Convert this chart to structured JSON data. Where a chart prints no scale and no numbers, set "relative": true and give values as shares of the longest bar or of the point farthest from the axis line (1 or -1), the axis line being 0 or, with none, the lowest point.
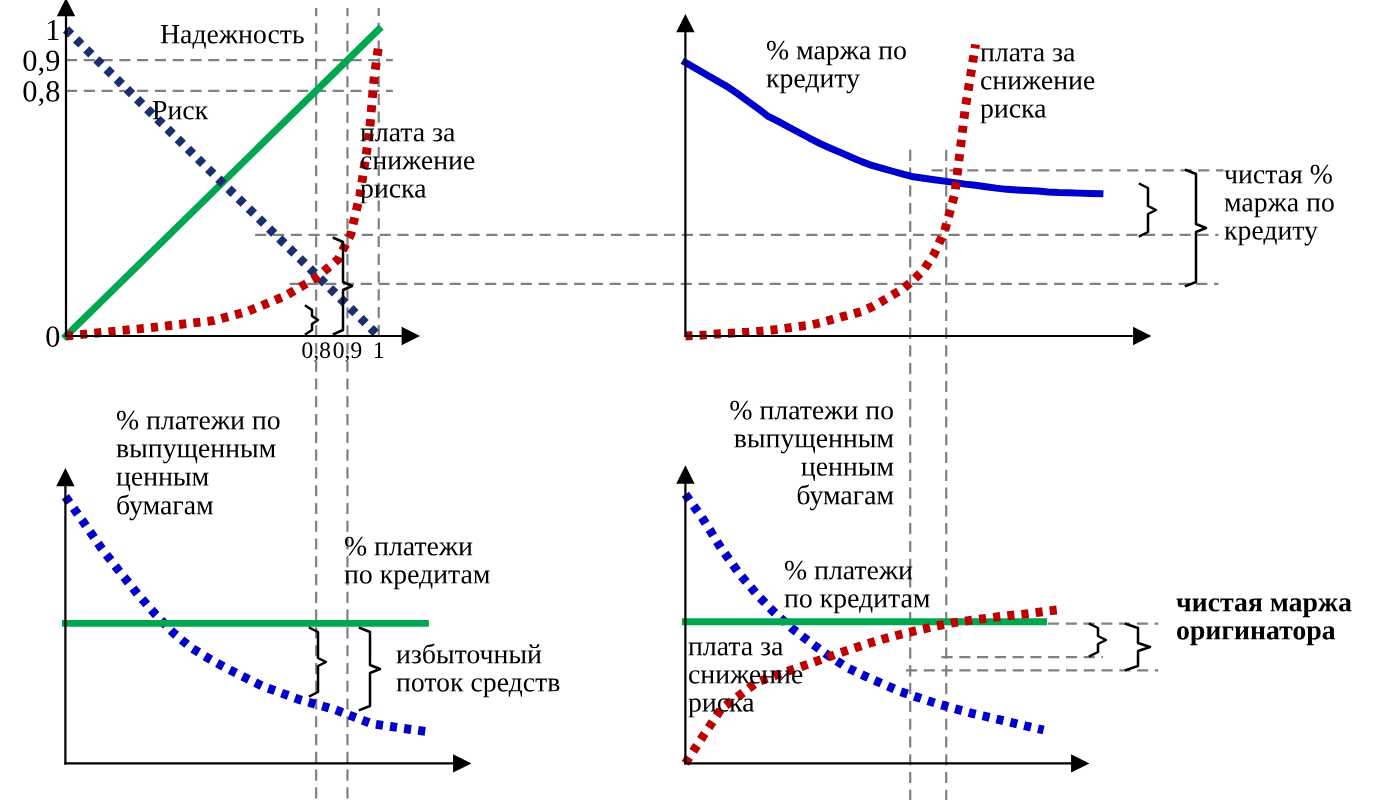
{
  "chart_data": [
    {
      "type": "line",
      "xlim": [
        0,
        1.1
      ],
      "ylim": [
        0,
        1.07
      ],
      "xticks": [
        {
          "value": 0.8,
          "label": "0,8"
        },
        {
          "value": 0.9,
          "label": "0,9"
        },
        1
      ],
      "yticks": [
        {
          "value": 0,
          "label": "0"
        },
        {
          "value": 0.8,
          "label": "0,8"
        },
        {
          "value": 0.9,
          "label": "0,9"
        },
        1
      ],
      "series": [
        {
          "name": "Надежность",
          "color": "#00a650",
          "line_style": "solid",
          "x": [
            0,
            1
          ],
          "values": [
            0,
            1
          ]
        },
        {
          "name": "Риск",
          "color": "#1a2f6e",
          "line_style": "dotted",
          "x": [
            0,
            1
          ],
          "values": [
            1,
            0
          ]
        },
        {
          "name": "плата за\nснижение\nриска",
          "color": "#c00000",
          "line_style": "dotted",
          "x": [
            0,
            0.26,
            0.47,
            0.58,
            0.7,
            0.8,
            0.87,
            0.91,
            0.94,
            0.97,
            0.985,
            1.0
          ],
          "values": [
            0,
            0.026,
            0.05,
            0.08,
            0.13,
            0.19,
            0.25,
            0.33,
            0.46,
            0.66,
            0.84,
            0.95
          ]
        }
      ],
      "ref_lines": [
        {
          "axis": "x",
          "value": 0.8,
          "line_style": "dashed",
          "color": "#808080"
        },
        {
          "axis": "x",
          "value": 0.9,
          "line_style": "dashed",
          "color": "#808080"
        },
        {
          "axis": "x",
          "value": 1,
          "line_style": "dashed",
          "color": "#808080"
        },
        {
          "axis": "y",
          "value": 0.9,
          "line_style": "dashed",
          "color": "#808080"
        },
        {
          "axis": "y",
          "value": 0.8,
          "line_style": "dashed",
          "color": "#808080"
        },
        {
          "axis": "y",
          "value": 0.33,
          "line_style": "dashed",
          "color": "#808080"
        },
        {
          "axis": "y",
          "value": 0.17,
          "line_style": "dashed",
          "color": "#808080"
        }
      ]
    },
    {
      "type": "line",
      "relative": true,
      "categories": [
        null,
        null,
        null,
        null,
        null,
        null,
        null,
        null,
        null,
        null,
        null,
        null,
        null,
        null,
        null,
        null,
        null,
        null,
        null,
        null,
        null,
        null,
        null,
        null,
        null,
        null,
        null,
        null,
        null,
        null,
        null,
        null,
        null,
        null,
        null,
        null,
        null,
        null,
        null,
        null,
        null,
        null,
        null
      ],
      "series": [
        {
          "name": "% маржа по\nкредиту",
          "color": "#0000cc",
          "line_style": "solid",
          "values": [
            0.938,
            0.917,
            0.897,
            0.876,
            0.856,
            0.832,
            0.806,
            0.78,
            0.753,
            0.735,
            0.716,
            0.697,
            0.678,
            0.66,
            0.644,
            0.629,
            0.613,
            0.598,
            0.585,
            0.575,
            0.565,
            0.555,
            0.546,
            0.541,
            0.536,
            0.531,
            0.526,
            0.521,
            0.517,
            0.512,
            0.507,
            0.503,
            0.501,
            0.499,
            0.497,
            0.494,
            0.492,
            0.491,
            0.49,
            0.489,
            0.488,
            null,
            null
          ]
        },
        {
          "name": "плата за\nснижение\nриска",
          "color": "#c00000",
          "line_style": "dotted",
          "values": [
            0,
            0.002,
            0.004,
            0.007,
            0.009,
            0.011,
            0.013,
            0.016,
            0.019,
            0.023,
            0.028,
            0.033,
            0.037,
            0.045,
            0.055,
            0.065,
            0.074,
            0.084,
            0.1,
            0.12,
            0.141,
            0.162,
            0.192,
            0.227,
            0.281,
            0.359,
            0.488,
            0.78,
            1.0,
            null,
            null,
            null,
            null,
            null,
            null,
            null,
            null,
            null,
            null,
            null,
            null,
            null,
            null
          ]
        }
      ],
      "ref_lines": [
        {
          "axis": "y",
          "value": 0.568,
          "line_style": "dashed",
          "color": "#808080"
        }
      ],
      "annotations": [
        "чистая %\nмаржа по\nкредиту"
      ]
    },
    {
      "type": "line",
      "relative": true,
      "categories": [
        null,
        null,
        null,
        null,
        null,
        null,
        null,
        null,
        null,
        null,
        null,
        null,
        null,
        null,
        null,
        null,
        null,
        null,
        null,
        null,
        null,
        null
      ],
      "series": [
        {
          "name": "% платежи по\nвыпущенным\nценным\nбумагам",
          "color": "#0000cc",
          "line_style": "dotted",
          "values": [
            1.0,
            0.905,
            0.807,
            0.72,
            0.636,
            0.559,
            0.489,
            0.433,
            0.392,
            0.355,
            0.321,
            0.288,
            0.264,
            0.239,
            0.22,
            0.201,
            0.175,
            0.149,
            0.139,
            0.129,
            0.12,
            null
          ]
        },
        {
          "name": "% платежи\nпо кредитам",
          "color": "#00a650",
          "line_style": "solid",
          "values": [
            0.525,
            0.525,
            0.525,
            0.525,
            0.525,
            0.525,
            0.525,
            0.525,
            0.525,
            0.525,
            0.525,
            0.525,
            0.525,
            0.525,
            0.525,
            0.525,
            0.525,
            0.525,
            0.525,
            0.525,
            0.525,
            null
          ]
        }
      ],
      "annotations": [
        "избыточный\nпоток средств"
      ]
    },
    {
      "type": "line",
      "relative": true,
      "categories": [
        null,
        null,
        null,
        null,
        null,
        null,
        null,
        null,
        null,
        null,
        null,
        null,
        null,
        null,
        null,
        null,
        null,
        null,
        null,
        null,
        null,
        null
      ],
      "series": [
        {
          "name": "% платежи по\nвыпущенным\nценным\nбумагам",
          "color": "#0000cc",
          "line_style": "dotted",
          "values": [
            1.0,
            0.906,
            0.799,
            0.706,
            0.627,
            0.558,
            0.499,
            0.448,
            0.4,
            0.357,
            0.325,
            0.296,
            0.267,
            0.245,
            0.223,
            0.204,
            0.186,
            0.171,
            0.155,
            0.139,
            0.124,
            null
          ]
        },
        {
          "name": "% платежи\nпо кредитам",
          "color": "#00a650",
          "line_style": "solid",
          "values": [
            0.526,
            0.526,
            0.526,
            0.526,
            0.526,
            0.526,
            0.526,
            0.526,
            0.526,
            0.526,
            0.526,
            0.526,
            0.526,
            0.526,
            0.526,
            0.526,
            0.526,
            0.526,
            0.526,
            0.526,
            0.526,
            null
          ]
        },
        {
          "name": "плата за\nснижение\nриска",
          "color": "#c00000",
          "line_style": "dotted",
          "values": [
            0,
            0.103,
            0.203,
            0.252,
            0.302,
            0.326,
            0.349,
            0.372,
            0.396,
            0.419,
            0.441,
            0.461,
            0.479,
            0.495,
            0.51,
            0.523,
            0.532,
            0.541,
            0.549,
            0.555,
            0.564,
            0.572
          ]
        }
      ],
      "ref_lines": [
        {
          "axis": "y",
          "value": 0.519,
          "line_style": "dashed",
          "color": "#808080"
        },
        {
          "axis": "y",
          "value": 0.395,
          "line_style": "dashed",
          "color": "#808080"
        },
        {
          "axis": "y",
          "value": 0.346,
          "line_style": "dashed",
          "color": "#808080"
        }
      ],
      "annotations": [
        "чистая маржа\nоригинатора"
      ]
    }
  ]
}
